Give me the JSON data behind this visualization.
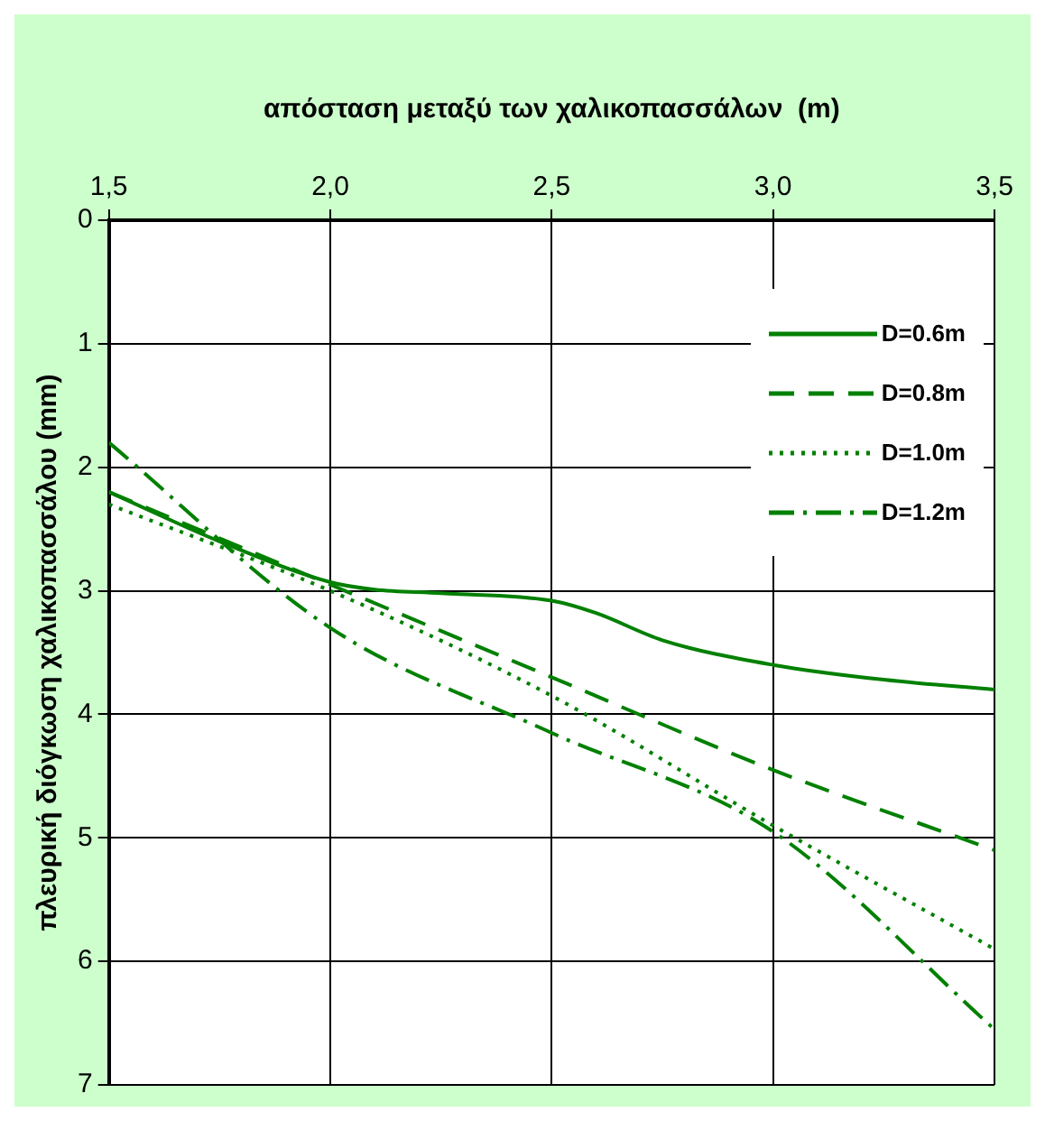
{
  "chart_data": {
    "type": "line",
    "xlabel": "απόσταση μεταξύ των χαλικοπασσάλων  (m)",
    "ylabel": "πλευρική διόγκωση χαλικοπασσάλου (mm)",
    "series": [
      {
        "name": "D=0.6m",
        "color": "#008000",
        "line_style": "solid",
        "x": [
          1.5,
          1.75,
          2.0,
          2.1,
          2.25,
          2.5,
          2.6,
          2.75,
          3.0,
          3.25,
          3.5
        ],
        "values": [
          2.2,
          2.6,
          2.93,
          2.99,
          3.02,
          3.08,
          3.18,
          3.4,
          3.6,
          3.72,
          3.8
        ]
      },
      {
        "name": "D=0.8m",
        "color": "#008000",
        "line_style": "dashed",
        "x": [
          1.5,
          2.0,
          2.5,
          3.0,
          3.5
        ],
        "values": [
          2.2,
          2.95,
          3.7,
          4.45,
          5.1
        ]
      },
      {
        "name": "D=1.0m",
        "color": "#008000",
        "line_style": "dotted",
        "x": [
          1.5,
          2.0,
          2.5,
          3.0,
          3.5
        ],
        "values": [
          2.3,
          3.0,
          3.85,
          4.9,
          5.9
        ]
      },
      {
        "name": "D=1.2m",
        "color": "#008000",
        "line_style": "dashdot",
        "x": [
          1.5,
          2.0,
          2.5,
          3.0,
          3.5
        ],
        "values": [
          1.8,
          3.3,
          4.15,
          4.95,
          6.55
        ]
      }
    ],
    "xlim": [
      1.5,
      3.5
    ],
    "xticks": [
      {
        "value": 1.5,
        "label": "1,5"
      },
      {
        "value": 2.0,
        "label": "2,0"
      },
      {
        "value": 2.5,
        "label": "2,5"
      },
      {
        "value": 3.0,
        "label": "3,0"
      },
      {
        "value": 3.5,
        "label": "3,5"
      }
    ],
    "ylim": [
      7,
      0
    ],
    "yticks": [
      0,
      1,
      2,
      3,
      4,
      5,
      6,
      7
    ],
    "grid": true,
    "legend": "top right",
    "marker": "none"
  }
}
